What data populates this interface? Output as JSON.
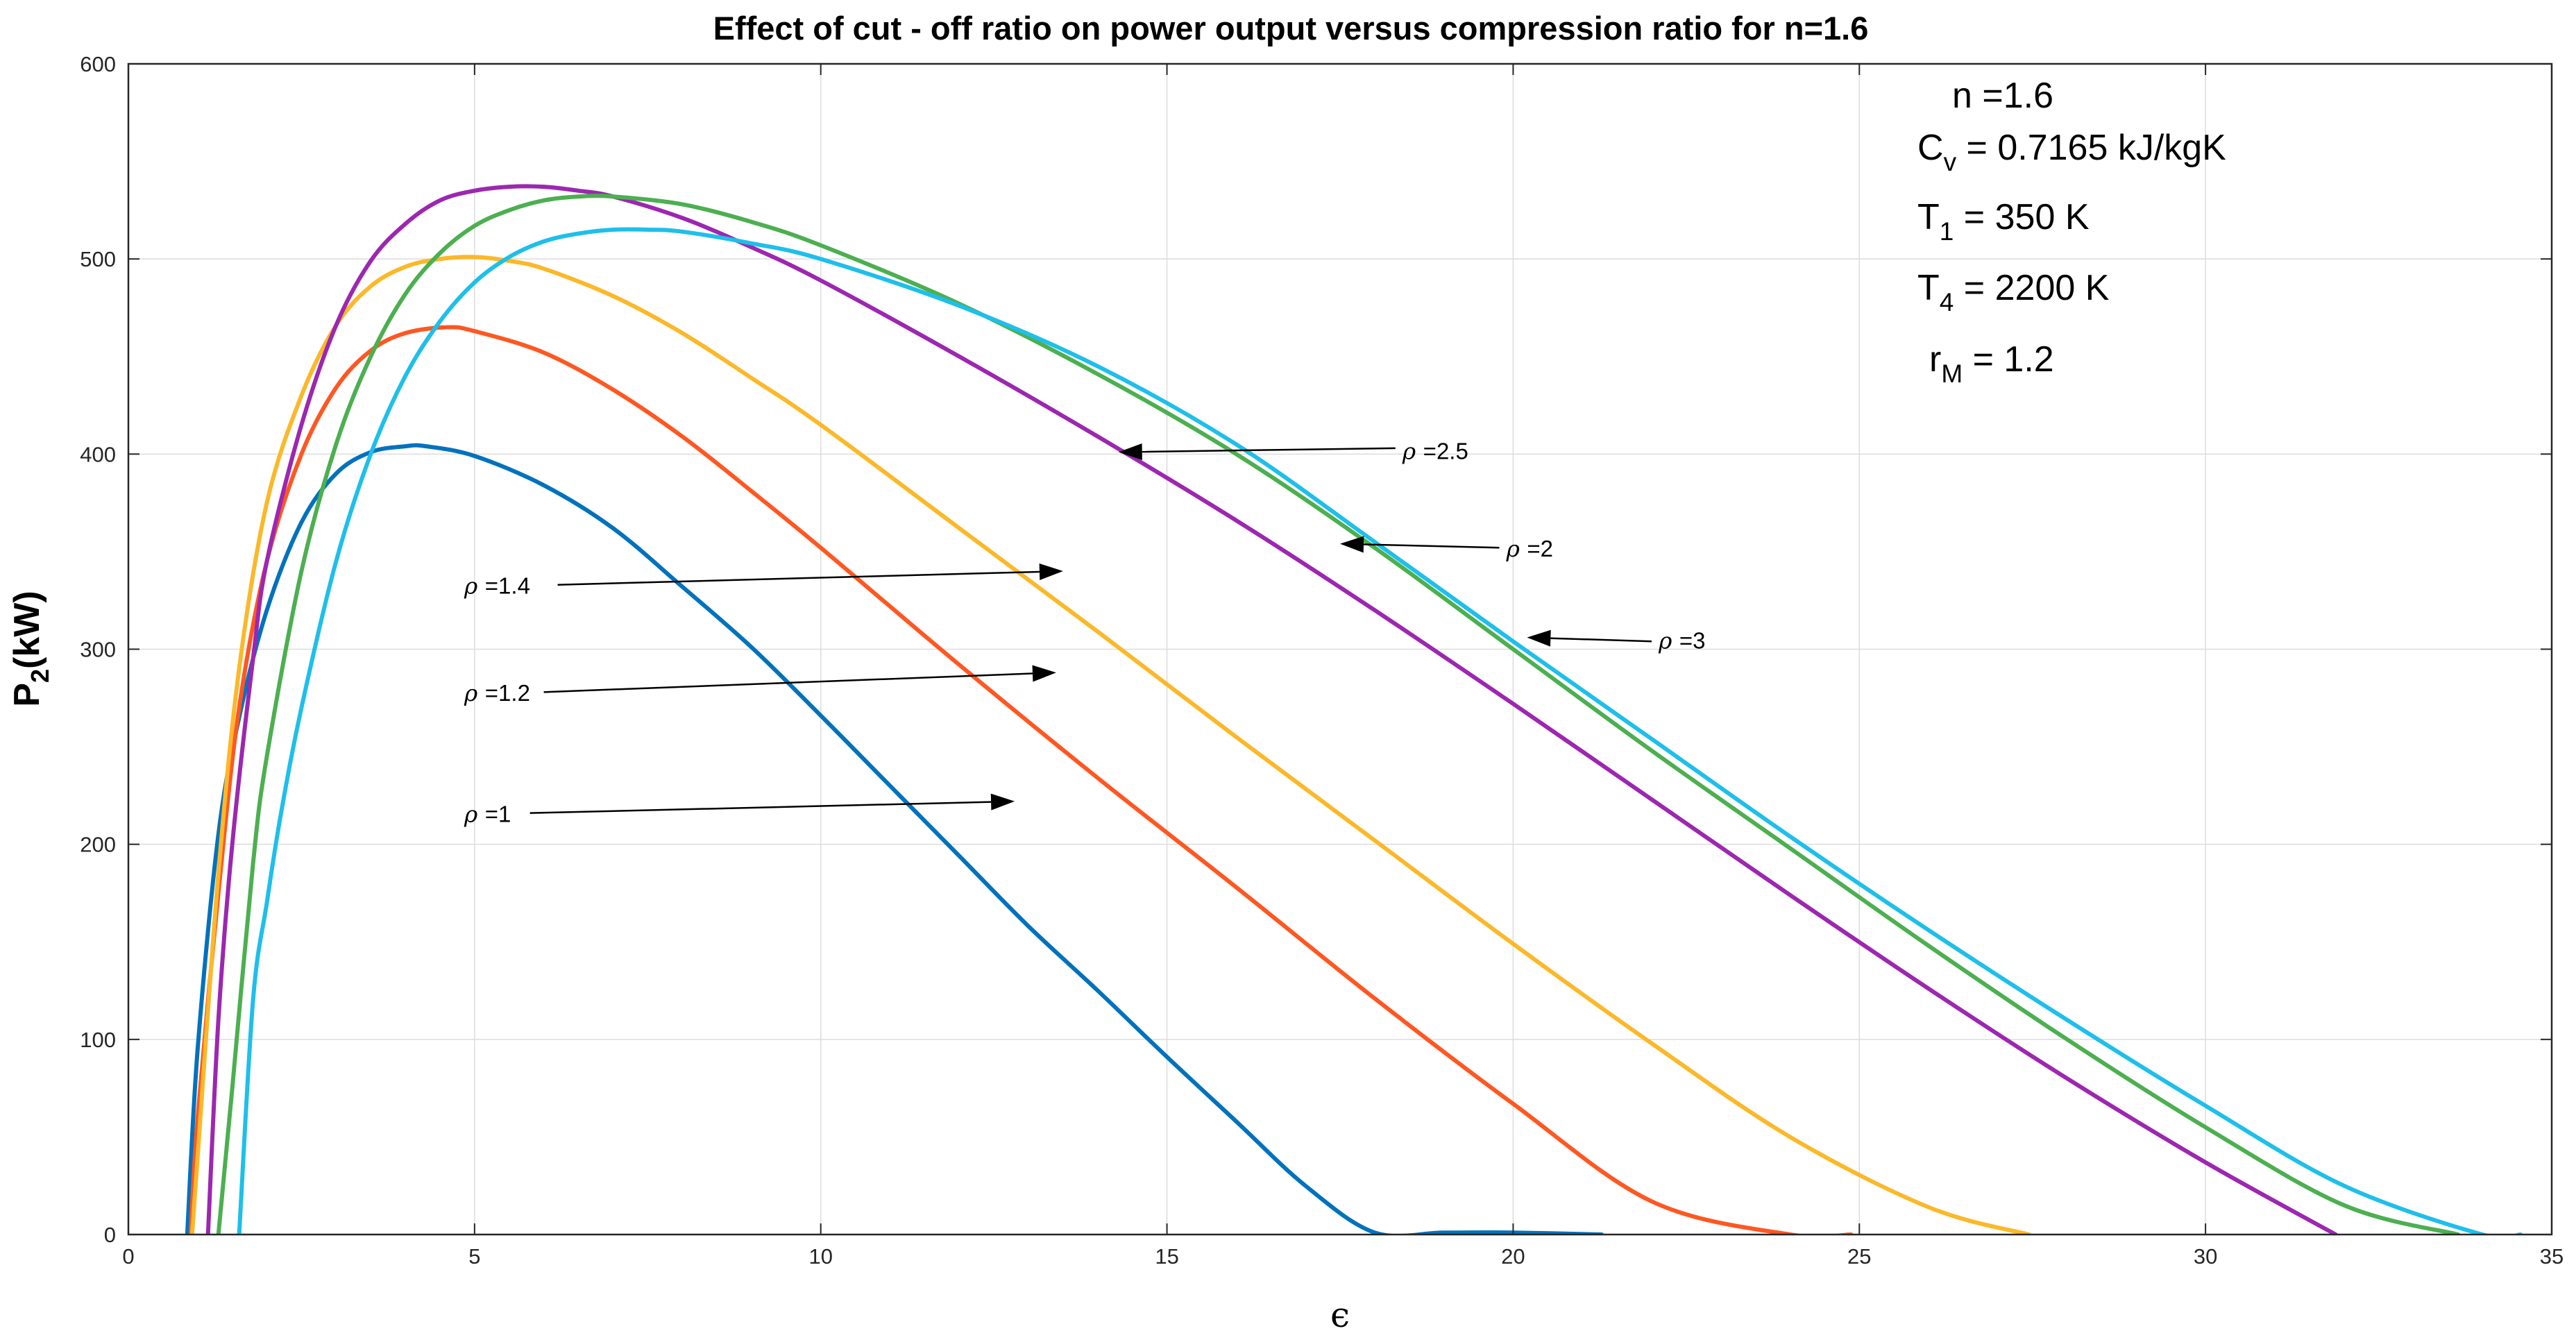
{
  "chart_data": {
    "type": "line",
    "title": "Effect of cut - off ratio on power output versus compression ratio for n=1.6",
    "xlabel": "ϵ",
    "ylabel": "P2(kW)",
    "ylabel_main": "P",
    "ylabel_sub": "2",
    "ylabel_unit": "(kW)",
    "xlim": [
      0,
      35
    ],
    "ylim": [
      0,
      600
    ],
    "xticks": [
      0,
      5,
      10,
      15,
      20,
      25,
      30,
      35
    ],
    "yticks": [
      0,
      100,
      200,
      300,
      400,
      500,
      600
    ],
    "grid": true,
    "series": [
      {
        "name": "ρ =1",
        "color": "#0072BD",
        "x": [
          0.85,
          1.0,
          1.3,
          1.6,
          2.0,
          2.5,
          3.0,
          3.5,
          4.0,
          4.3,
          5.0,
          6.0,
          7.0,
          8.0,
          9.0,
          10.0,
          11.0,
          12.0,
          13.0,
          14.0,
          15.0,
          16.0,
          17.0,
          18.0,
          19.0,
          20.0,
          21.28
        ],
        "y": [
          0,
          95,
          205,
          265,
          320,
          365,
          390,
          401,
          404,
          404,
          399,
          384,
          362,
          332,
          301,
          266,
          230,
          194,
          158,
          125,
          91,
          58,
          25,
          1,
          1,
          1,
          0
        ]
      },
      {
        "name": "ρ =1.2",
        "color": "#FF5722",
        "x": [
          0.9,
          1.0,
          1.3,
          1.6,
          2.0,
          2.5,
          3.0,
          3.5,
          4.0,
          4.6,
          5.0,
          6.0,
          7.0,
          8.0,
          9.0,
          10.0,
          12.0,
          14.0,
          16.0,
          18.0,
          20.0,
          22.0,
          24.0,
          24.88
        ],
        "y": [
          0,
          60,
          175,
          270,
          345,
          400,
          434,
          453,
          462,
          465,
          463,
          452,
          433,
          409,
          381,
          352,
          292,
          234,
          178,
          121,
          67,
          17,
          0,
          0
        ]
      },
      {
        "name": "ρ =1.4",
        "color": "#FBB829",
        "x": [
          0.92,
          1.0,
          1.3,
          1.6,
          2.0,
          2.5,
          3.0,
          3.5,
          4.0,
          4.5,
          5.0,
          5.5,
          6.0,
          7.0,
          8.0,
          9.0,
          10.0,
          12.0,
          14.0,
          16.0,
          18.0,
          20.0,
          22.0,
          24.0,
          26.0,
          27.45
        ],
        "y": [
          0,
          40,
          185,
          290,
          375,
          430,
          466,
          486,
          496,
          500,
          501,
          499,
          495,
          481,
          462,
          439,
          415,
          362,
          309,
          255,
          202,
          149,
          98,
          50,
          14,
          0
        ]
      },
      {
        "name": "ρ =2.5",
        "color": "#9C27B0",
        "x": [
          1.15,
          1.3,
          1.5,
          1.8,
          2.0,
          2.5,
          3.0,
          3.5,
          4.0,
          4.5,
          5.0,
          5.5,
          6.0,
          6.5,
          7.0,
          8.0,
          9.0,
          10.0,
          12.0,
          14.0,
          16.0,
          18.0,
          20.0,
          22.0,
          24.0,
          26.0,
          28.0,
          30.0,
          31.88
        ],
        "y": [
          0,
          110,
          200,
          295,
          345,
          415,
          466,
          499,
          518,
          530,
          535,
          537,
          537,
          535,
          532,
          521,
          506,
          489,
          450,
          409,
          366,
          320,
          272,
          223,
          174,
          126,
          80,
          37,
          0
        ]
      },
      {
        "name": "ρ =2",
        "color": "#4CAF50",
        "x": [
          1.3,
          1.5,
          1.8,
          2.0,
          2.5,
          3.0,
          3.5,
          4.0,
          4.5,
          5.0,
          5.5,
          6.0,
          6.5,
          7.0,
          8.0,
          9.0,
          10.0,
          12.0,
          14.0,
          16.0,
          18.0,
          20.0,
          22.0,
          24.0,
          26.0,
          28.0,
          30.0,
          32.0,
          33.65
        ],
        "y": [
          0,
          75,
          190,
          245,
          340,
          405,
          450,
          482,
          503,
          517,
          525,
          530,
          532,
          532,
          528,
          519,
          507,
          477,
          441,
          400,
          352,
          300,
          248,
          198,
          148,
          100,
          55,
          15,
          0
        ]
      },
      {
        "name": "ρ =3",
        "color": "#1EBFEA",
        "x": [
          1.6,
          1.8,
          2.0,
          2.2,
          2.5,
          3.0,
          3.5,
          4.0,
          4.5,
          5.0,
          5.5,
          6.0,
          6.5,
          7.0,
          7.5,
          8.0,
          9.0,
          10.0,
          12.0,
          14.0,
          16.0,
          18.0,
          20.0,
          22.0,
          24.0,
          26.0,
          28.0,
          30.0,
          32.0,
          34.0,
          34.55
        ],
        "y": [
          0,
          120,
          170,
          215,
          270,
          345,
          400,
          440,
          468,
          488,
          501,
          509,
          513,
          515,
          515,
          514,
          508,
          500,
          476,
          445,
          405,
          355,
          304,
          254,
          204,
          156,
          110,
          66,
          25,
          0,
          0
        ]
      }
    ],
    "arrows": [
      {
        "label": "ρ =1",
        "value": "=1",
        "text_at": [
          4.85,
          215
        ],
        "tail": [
          5.8,
          216
        ],
        "head": [
          12.8,
          222
        ]
      },
      {
        "label": "ρ =1.2",
        "value": "=1.2",
        "text_at": [
          4.85,
          277
        ],
        "tail": [
          6.0,
          278
        ],
        "head": [
          13.4,
          288
        ]
      },
      {
        "label": "ρ =1.4",
        "value": "=1.4",
        "text_at": [
          4.85,
          332
        ],
        "tail": [
          6.2,
          333
        ],
        "head": [
          13.5,
          340
        ]
      },
      {
        "label": "ρ =2.5",
        "value": "=2.5",
        "text_at": [
          18.4,
          401
        ],
        "tail": [
          18.3,
          403
        ],
        "head": [
          14.3,
          401
        ]
      },
      {
        "label": "ρ =2",
        "value": "=2",
        "text_at": [
          19.9,
          351
        ],
        "tail": [
          19.8,
          352
        ],
        "head": [
          17.5,
          354
        ]
      },
      {
        "label": "ρ =3",
        "value": "=3",
        "text_at": [
          22.1,
          304
        ],
        "tail": [
          22.0,
          304
        ],
        "head": [
          20.2,
          306
        ]
      }
    ],
    "annotation": {
      "n_line": "n =1.6",
      "cv_main": "C",
      "cv_sub": "v",
      "cv_rest": " = 0.7165 kJ/kgK",
      "t1_main": "T",
      "t1_sub": "1",
      "t1_rest": " = 350 K",
      "t4_main": "T",
      "t4_sub": "4",
      "t4_rest": " = 2200 K",
      "rm_main": "r",
      "rm_sub": "M",
      "rm_rest": " = 1.2"
    }
  }
}
